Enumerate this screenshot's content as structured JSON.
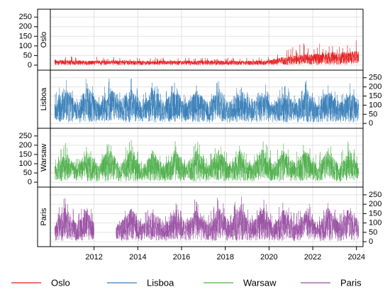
{
  "chart_data": {
    "type": "line",
    "layout": "vertically stacked panels, one per series, shared x axis",
    "x_axis": {
      "unit": "year",
      "range": [
        2010.0,
        2024.3
      ],
      "ticks": [
        2012,
        2014,
        2016,
        2018,
        2020,
        2022,
        2024
      ],
      "tick_labels": [
        "2012",
        "2014",
        "2016",
        "2018",
        "2020",
        "2022",
        "2024"
      ]
    },
    "y_axis": {
      "range": [
        -15,
        280
      ],
      "ticks": [
        0,
        50,
        100,
        150,
        200,
        250
      ],
      "tick_labels": [
        "0",
        "50",
        "100",
        "150",
        "200",
        "250"
      ]
    },
    "grid": true,
    "legend": {
      "position": "bottom",
      "entries": [
        "Oslo",
        "Lisboa",
        "Warsaw",
        "Paris"
      ]
    },
    "series": [
      {
        "name": "Oslo",
        "color": "#e41a1c",
        "amplitude_profile": "low, increasing after 2020",
        "x": [
          2010.2,
          2011.0,
          2012.0,
          2013.0,
          2014.0,
          2015.0,
          2016.0,
          2017.0,
          2018.0,
          2019.0,
          2020.0,
          2020.5,
          2021.0,
          2021.5,
          2022.0,
          2022.5,
          2023.0,
          2023.5,
          2024.0,
          2024.1
        ],
        "typical_high": [
          28,
          26,
          24,
          25,
          24,
          24,
          24,
          25,
          24,
          24,
          25,
          40,
          45,
          55,
          60,
          65,
          70,
          68,
          75,
          70
        ],
        "peak": [
          50,
          45,
          45,
          42,
          40,
          40,
          42,
          42,
          40,
          42,
          50,
          85,
          90,
          120,
          105,
          125,
          135,
          115,
          150,
          110
        ]
      },
      {
        "name": "Lisboa",
        "color": "#377eb8",
        "amplitude_profile": "strong yearly cycle, summer maxima",
        "x": [
          2010.2,
          2010.7,
          2011.2,
          2011.7,
          2012.2,
          2012.7,
          2013.2,
          2013.7,
          2014.2,
          2014.7,
          2015.2,
          2015.7,
          2016.2,
          2016.7,
          2017.2,
          2017.7,
          2018.2,
          2018.7,
          2019.2,
          2019.7,
          2020.2,
          2020.7,
          2021.2,
          2021.7,
          2022.2,
          2022.7,
          2023.2,
          2023.7,
          2024.1
        ],
        "typical_high": [
          120,
          200,
          110,
          205,
          115,
          210,
          125,
          200,
          110,
          195,
          120,
          190,
          115,
          185,
          110,
          200,
          120,
          195,
          115,
          180,
          105,
          175,
          110,
          180,
          105,
          185,
          110,
          175,
          130
        ],
        "peak": [
          160,
          250,
          150,
          260,
          155,
          250,
          175,
          250,
          150,
          240,
          165,
          240,
          155,
          235,
          150,
          255,
          165,
          250,
          160,
          240,
          145,
          225,
          150,
          235,
          140,
          240,
          150,
          230,
          175
        ]
      },
      {
        "name": "Warsaw",
        "color": "#4daf4a",
        "amplitude_profile": "strong yearly cycle, summer maxima",
        "x": [
          2010.2,
          2010.7,
          2011.2,
          2011.7,
          2012.2,
          2012.7,
          2013.2,
          2013.7,
          2014.2,
          2014.7,
          2015.2,
          2015.7,
          2016.2,
          2016.7,
          2017.2,
          2017.7,
          2018.2,
          2018.7,
          2019.2,
          2019.7,
          2020.2,
          2020.7,
          2021.2,
          2021.7,
          2022.2,
          2022.7,
          2023.2,
          2023.7,
          2024.1
        ],
        "typical_high": [
          90,
          170,
          85,
          180,
          90,
          185,
          95,
          180,
          85,
          175,
          90,
          180,
          95,
          175,
          90,
          185,
          95,
          180,
          90,
          185,
          100,
          170,
          105,
          175,
          100,
          170,
          95,
          180,
          90
        ],
        "peak": [
          130,
          220,
          130,
          230,
          125,
          235,
          140,
          235,
          125,
          230,
          130,
          240,
          135,
          235,
          125,
          245,
          135,
          235,
          130,
          240,
          150,
          225,
          155,
          230,
          145,
          225,
          140,
          245,
          120
        ]
      },
      {
        "name": "Paris",
        "color": "#984ea3",
        "amplitude_profile": "strong yearly cycle, data gap 2012.0-2013.0",
        "gaps": [
          [
            2012.0,
            2013.0
          ]
        ],
        "x": [
          2010.2,
          2010.7,
          2011.2,
          2011.7,
          2012.0,
          2013.0,
          2013.2,
          2013.7,
          2014.2,
          2014.7,
          2015.2,
          2015.7,
          2016.2,
          2016.7,
          2017.2,
          2017.7,
          2018.2,
          2018.7,
          2019.2,
          2019.7,
          2020.2,
          2020.7,
          2021.2,
          2021.7,
          2022.2,
          2022.7,
          2023.2,
          2023.7,
          2024.1
        ],
        "typical_high": [
          100,
          190,
          95,
          185,
          100,
          95,
          105,
          180,
          95,
          175,
          100,
          180,
          105,
          180,
          95,
          185,
          105,
          195,
          100,
          185,
          95,
          180,
          100,
          175,
          95,
          190,
          100,
          195,
          105
        ],
        "peak": [
          150,
          260,
          140,
          250,
          140,
          140,
          150,
          235,
          140,
          230,
          150,
          250,
          150,
          245,
          140,
          255,
          150,
          275,
          145,
          250,
          140,
          245,
          145,
          240,
          140,
          255,
          145,
          265,
          160
        ]
      }
    ]
  }
}
